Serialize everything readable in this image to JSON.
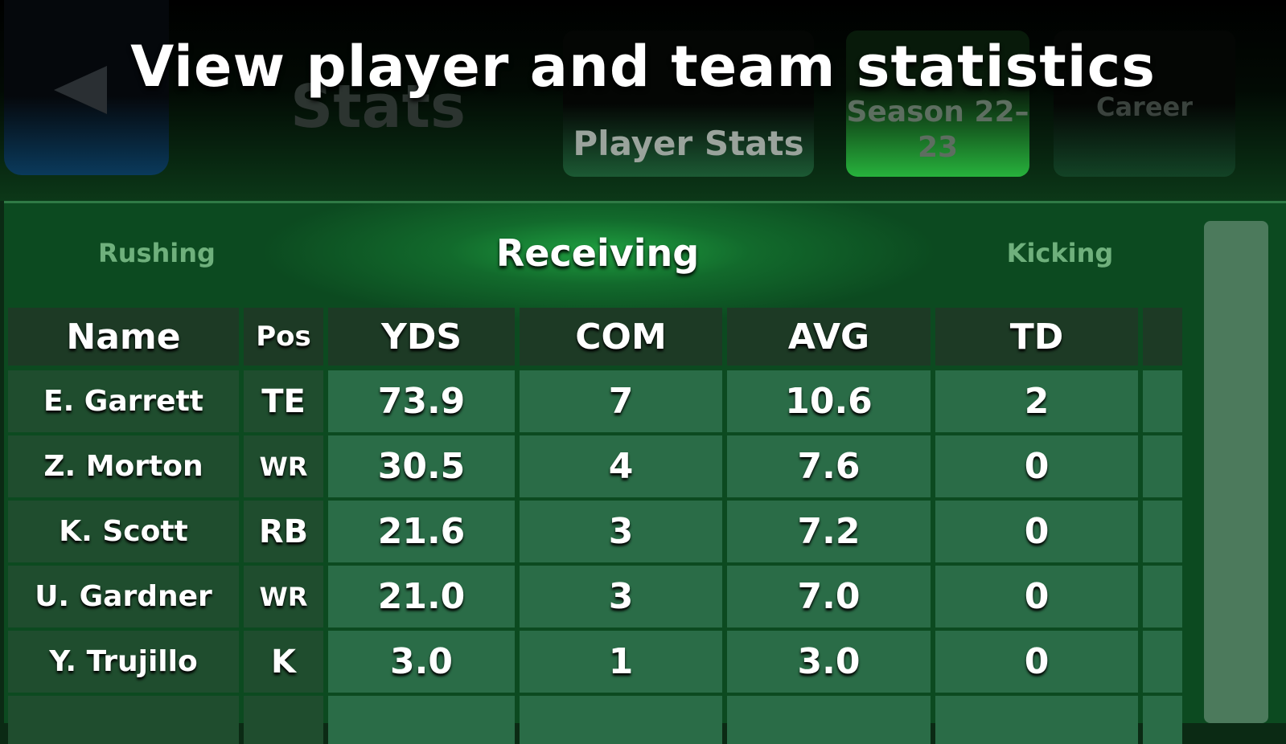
{
  "banner": {
    "title": "View player and team statistics"
  },
  "header": {
    "title": "Stats",
    "tabs": [
      "Player Stats",
      "Season 22–23",
      "Career"
    ]
  },
  "subtabs": [
    "Rushing",
    "Receiving",
    "Kicking"
  ],
  "table": {
    "columns": [
      "Name",
      "Pos",
      "YDS",
      "COM",
      "AVG",
      "TD"
    ],
    "rows": [
      [
        "E. Garrett",
        "TE",
        "73.9",
        "7",
        "10.6",
        "2"
      ],
      [
        "Z. Morton",
        "WR",
        "30.5",
        "4",
        "7.6",
        "0"
      ],
      [
        "K. Scott",
        "RB",
        "21.6",
        "3",
        "7.2",
        "0"
      ],
      [
        "U. Gardner",
        "WR",
        "21.0",
        "3",
        "7.0",
        "0"
      ],
      [
        "Y. Trujillo",
        "K",
        "3.0",
        "1",
        "3.0",
        "0"
      ]
    ]
  }
}
